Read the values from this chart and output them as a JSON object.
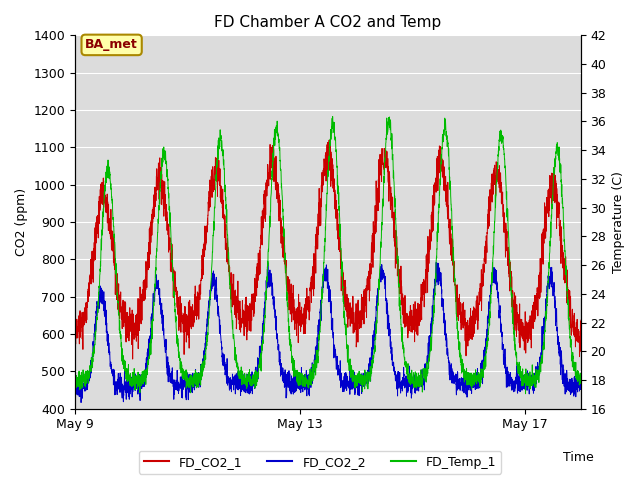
{
  "title": "FD Chamber A CO2 and Temp",
  "xlabel": "Time",
  "ylabel_left": "CO2 (ppm)",
  "ylabel_right": "Temperature (C)",
  "co2_ylim": [
    400,
    1400
  ],
  "temp_ylim": [
    16,
    42
  ],
  "xtick_labels": [
    "May 9",
    "May 13",
    "May 17"
  ],
  "background_color": "#dcdcdc",
  "line_colors": {
    "co2_1": "#cc0000",
    "co2_2": "#0000cc",
    "temp": "#00bb00"
  },
  "legend_labels": [
    "FD_CO2_1",
    "FD_CO2_2",
    "FD_Temp_1"
  ],
  "annotation_text": "BA_met",
  "annotation_bg": "#ffffaa",
  "annotation_border": "#aa8800",
  "figsize": [
    6.4,
    4.8
  ],
  "dpi": 100
}
